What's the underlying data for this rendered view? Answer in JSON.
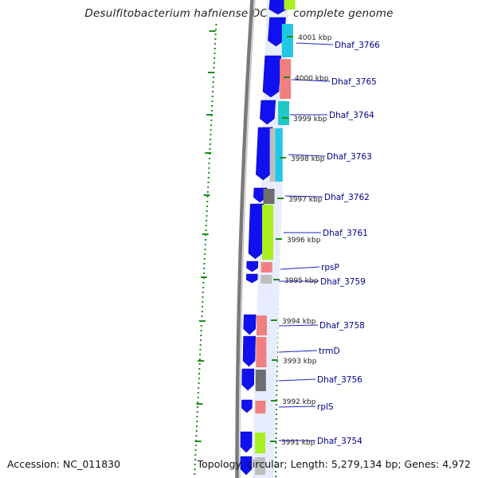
{
  "title": "Desulfitobacterium hafniense DCB-2, complete genome",
  "footer": {
    "accession": "Accession: NC_011830",
    "summary": "Topology: circular; Length: 5,279,134 bp; Genes: 4,972"
  },
  "colors": {
    "forward_strand": "#1010f0",
    "backbone": "#7a7a7a",
    "gc_skew_dots": "#1e8c1e",
    "label_link": "#2020c8",
    "gene_cyan": "#1ec8e6",
    "gene_salmon": "#f08080",
    "gene_grey": "#6e6e6e",
    "gene_green": "#a8f020",
    "gene_lightgrey": "#bdbdbd",
    "gene_teal": "#20c8c8"
  },
  "kbp_ticks": [
    {
      "label": "4001 kbp"
    },
    {
      "label": "4000 kbp"
    },
    {
      "label": "3999 kbp"
    },
    {
      "label": "3998 kbp"
    },
    {
      "label": "3997 kbp"
    },
    {
      "label": "3996 kbp"
    },
    {
      "label": "3995 kbp"
    },
    {
      "label": "3994 kbp"
    },
    {
      "label": "3993 kbp"
    },
    {
      "label": "3992 kbp"
    },
    {
      "label": "3991 kbp"
    }
  ],
  "genes": [
    {
      "label": "Dhaf_3766",
      "color": "cyan"
    },
    {
      "label": "Dhaf_3765",
      "color": "salmon"
    },
    {
      "label": "Dhaf_3764",
      "color": "teal"
    },
    {
      "label": "Dhaf_3763",
      "color": "cyan"
    },
    {
      "label": "Dhaf_3762",
      "color": "grey"
    },
    {
      "label": "Dhaf_3761",
      "color": "green"
    },
    {
      "label": "rpsP",
      "color": "salmon"
    },
    {
      "label": "Dhaf_3759",
      "color": "lightgrey"
    },
    {
      "label": "Dhaf_3758",
      "color": "salmon"
    },
    {
      "label": "trmD",
      "color": "salmon"
    },
    {
      "label": "Dhaf_3756",
      "color": "grey"
    },
    {
      "label": "rplS",
      "color": "salmon"
    },
    {
      "label": "Dhaf_3754",
      "color": "green"
    }
  ]
}
